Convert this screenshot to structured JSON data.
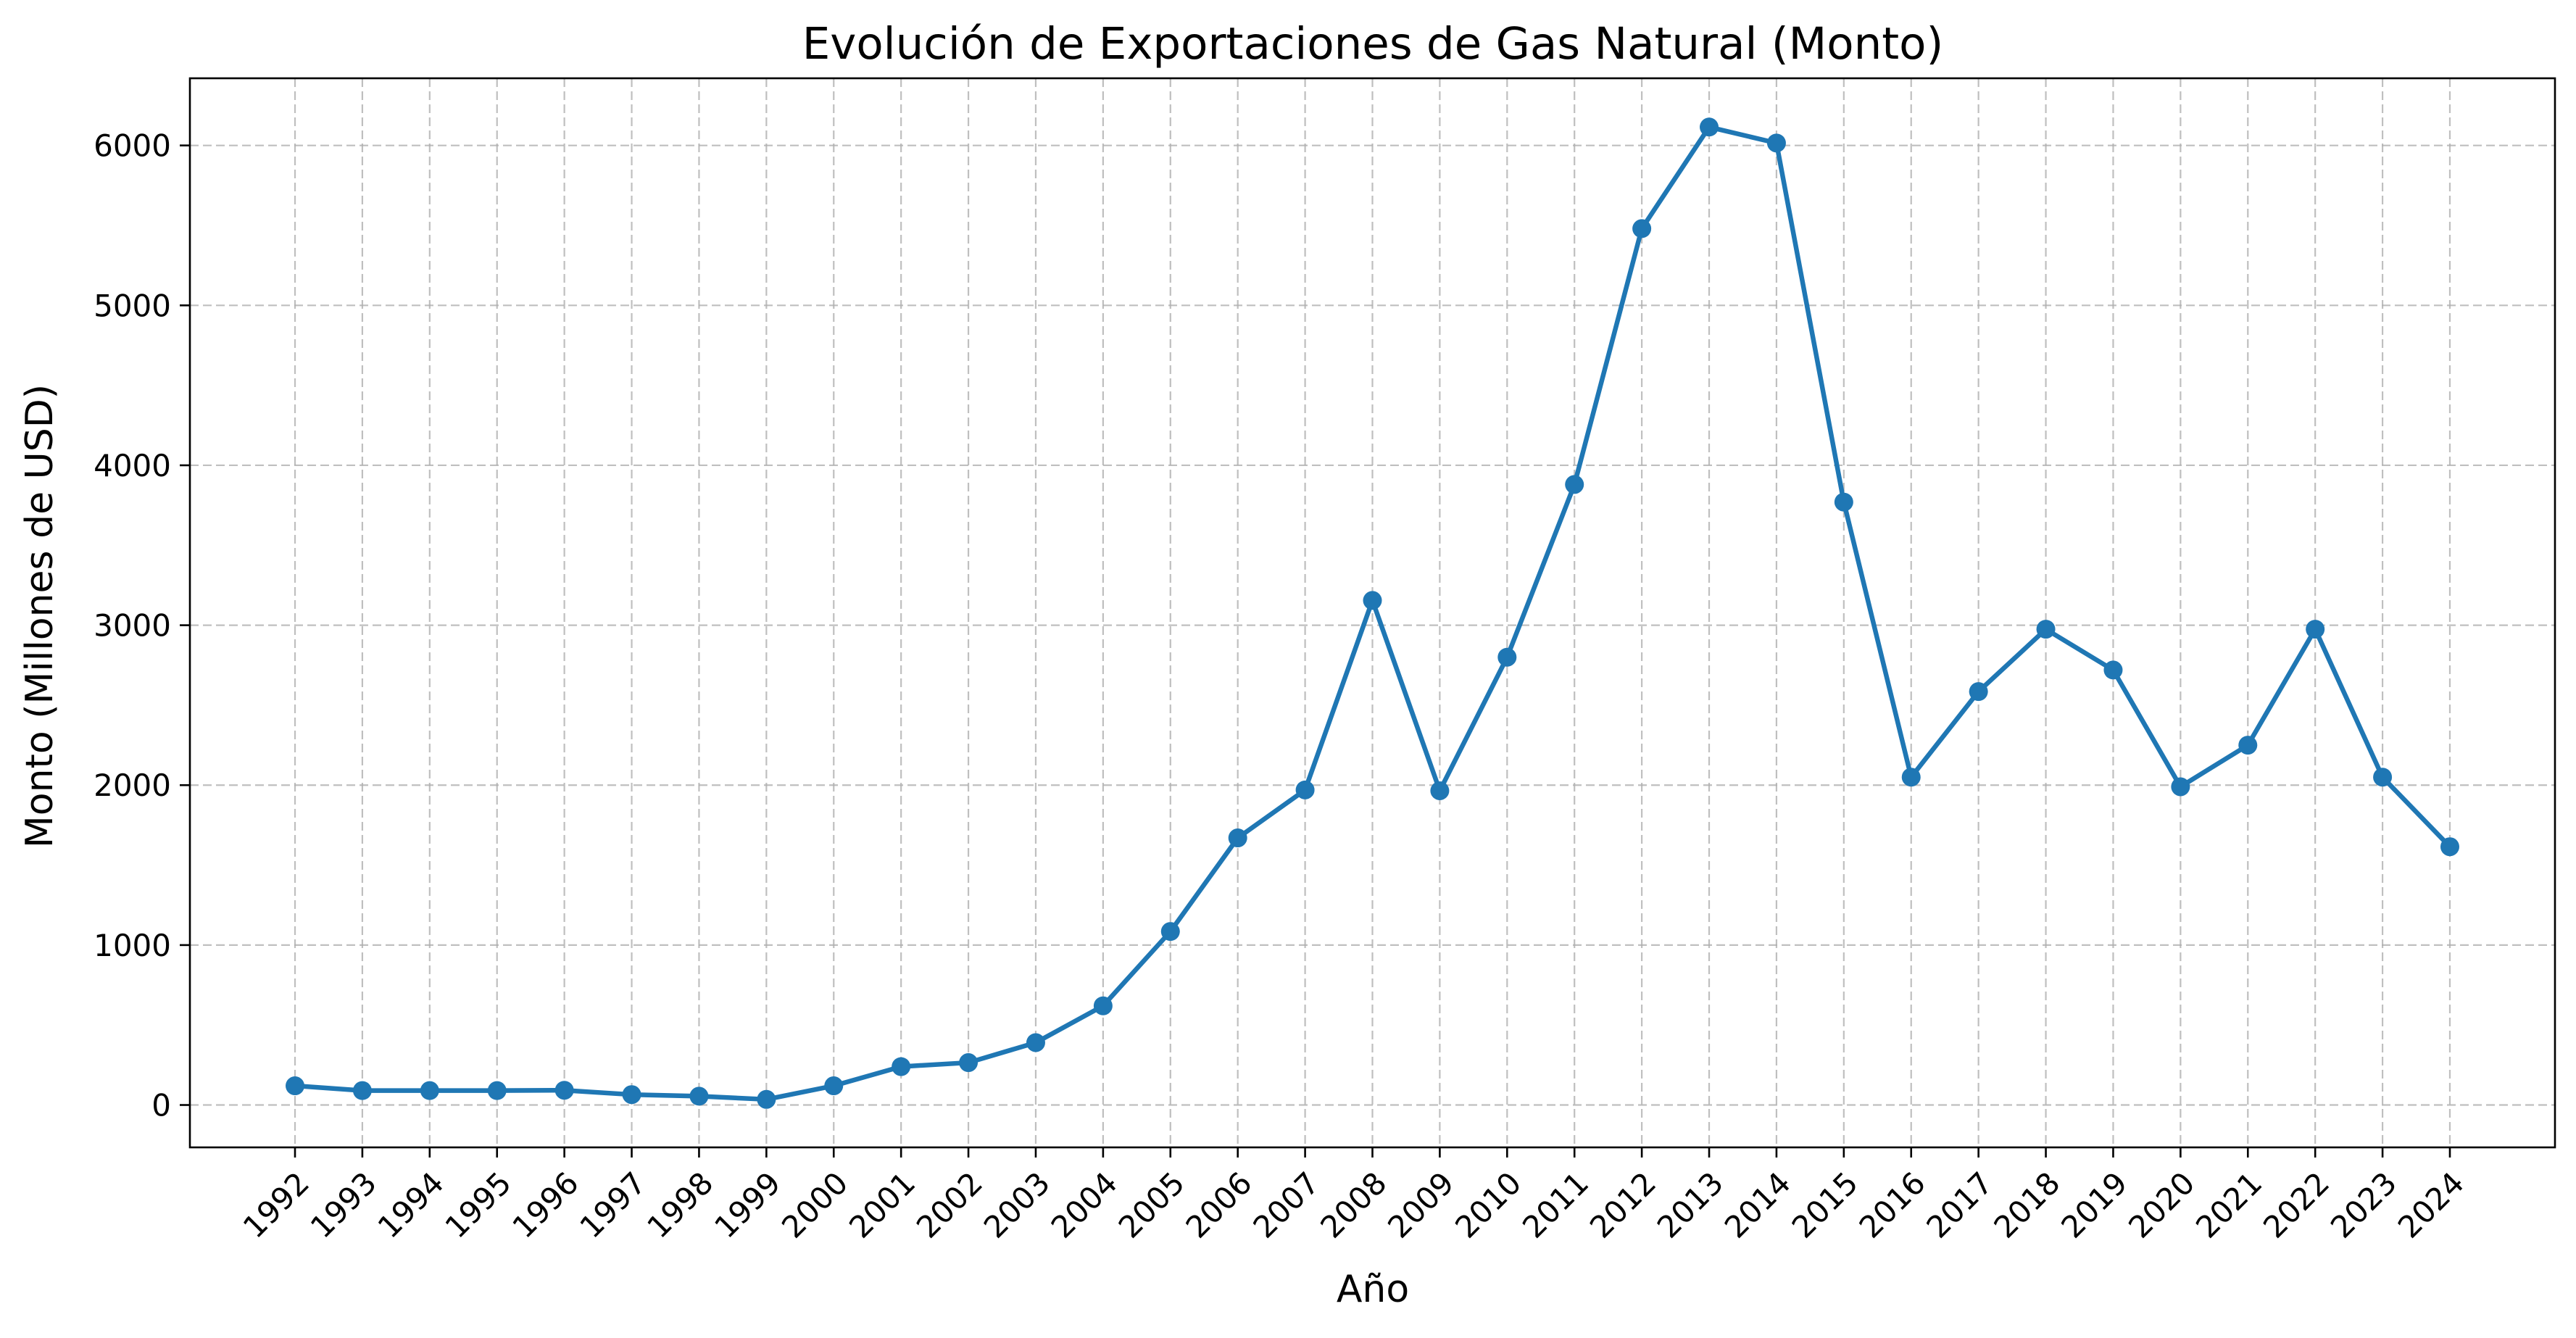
{
  "chart_data": {
    "type": "line",
    "title": "Evolución de Exportaciones de Gas Natural (Monto)",
    "xlabel": "Año",
    "ylabel": "Monto (Millones de USD)",
    "x": [
      "1992",
      "1993",
      "1994",
      "1995",
      "1996",
      "1997",
      "1998",
      "1999",
      "2000",
      "2001",
      "2002",
      "2003",
      "2004",
      "2005",
      "2006",
      "2007",
      "2008",
      "2009",
      "2010",
      "2011",
      "2012",
      "2013",
      "2014",
      "2015",
      "2016",
      "2017",
      "2018",
      "2019",
      "2020",
      "2021",
      "2022",
      "2023",
      "2024"
    ],
    "series": [
      {
        "values": [
          120,
          90,
          90,
          90,
          92,
          65,
          55,
          35,
          120,
          240,
          265,
          390,
          620,
          1085,
          1670,
          1970,
          3155,
          1965,
          2800,
          3880,
          5480,
          6115,
          6015,
          3770,
          2050,
          2585,
          2975,
          2720,
          1990,
          2250,
          2975,
          2050,
          1615
        ],
        "color": "#1f77b4",
        "marker": "circle"
      }
    ],
    "yticks": [
      0,
      1000,
      2000,
      3000,
      4000,
      5000,
      6000
    ],
    "ylim": [
      -265,
      6420
    ],
    "grid": true,
    "xtick_rotation": -45
  }
}
